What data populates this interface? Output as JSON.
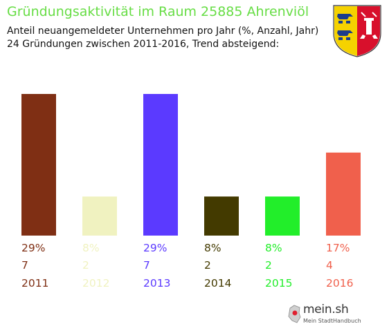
{
  "header": {
    "title": "Gründungsaktivität im Raum 25885 Ahrenviöl",
    "subtitle_line1": "Anteil neuangemeldeter Unternehmen pro Jahr (%, Anzahl, Jahr)",
    "subtitle_line2": "24 Gründungen zwischen 2011-2016, Trend absteigend:"
  },
  "crest": {
    "icon": "schleswig-holstein-coat-of-arms-icon"
  },
  "logo": {
    "name": "mein.sh",
    "tagline": "Mein StadtHandbuch",
    "icon": "map-pin-icon"
  },
  "chart_data": {
    "type": "bar",
    "categories": [
      "2011",
      "2012",
      "2013",
      "2014",
      "2015",
      "2016"
    ],
    "values": [
      29,
      8,
      29,
      8,
      8,
      17
    ],
    "counts": [
      7,
      2,
      7,
      2,
      2,
      4
    ],
    "percent_labels": [
      "29%",
      "8%",
      "29%",
      "8%",
      "8%",
      "17%"
    ],
    "colors": [
      "#7f2f14",
      "#f0f2c0",
      "#5b3aff",
      "#433a00",
      "#22ee2a",
      "#f0604c"
    ],
    "ylim": [
      0,
      29
    ],
    "grid": false,
    "legend": "none"
  }
}
